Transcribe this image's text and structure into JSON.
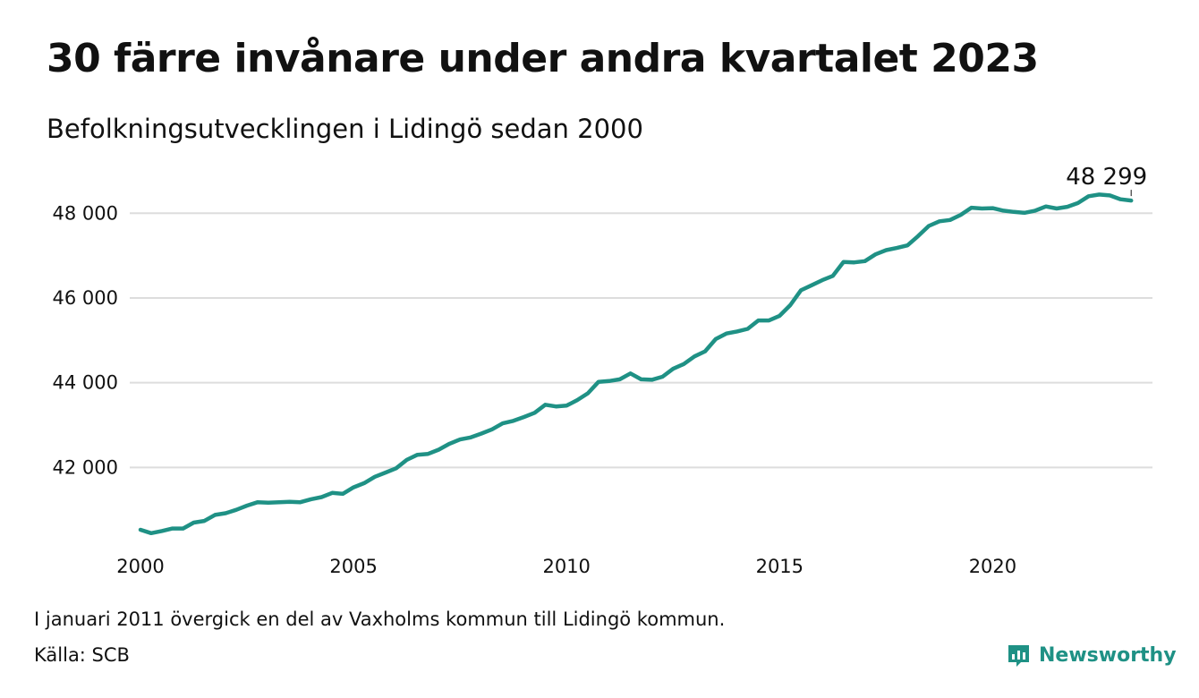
{
  "header": {
    "title": "30 färre invånare under andra kvartalet 2023",
    "subtitle": "Befolkningsutvecklingen i Lidingö sedan 2000"
  },
  "footer": {
    "note": "I januari 2011 övergick en del av Vaxholms kommun till Lidingö kommun.",
    "source": "Källa: SCB",
    "brand": "Newsworthy"
  },
  "colors": {
    "line": "#1f9185",
    "grid": "#dddddd",
    "brand": "#1f9185"
  },
  "icons": {
    "brand": "bar-chart-speech-bubble-icon"
  },
  "chart_data": {
    "type": "line",
    "title": "30 färre invånare under andra kvartalet 2023",
    "subtitle": "Befolkningsutvecklingen i Lidingö sedan 2000",
    "xlabel": "",
    "ylabel": "",
    "xlim": [
      2000,
      2023.75
    ],
    "ylim": [
      40150,
      48850
    ],
    "xticks": [
      2000,
      2005,
      2010,
      2015,
      2020
    ],
    "xtick_labels": [
      "2000",
      "2005",
      "2010",
      "2015",
      "2020"
    ],
    "yticks": [
      42000,
      44000,
      46000,
      48000
    ],
    "ytick_labels": [
      "42 000",
      "44 000",
      "46 000",
      "48 000"
    ],
    "grid": "horizontal",
    "legend": "none",
    "end_label": "48 299",
    "x": [
      2000.0,
      2000.25,
      2000.5,
      2000.75,
      2001.0,
      2001.25,
      2001.5,
      2001.75,
      2002.0,
      2002.25,
      2002.5,
      2002.75,
      2003.0,
      2003.25,
      2003.5,
      2003.75,
      2004.0,
      2004.25,
      2004.5,
      2004.75,
      2005.0,
      2005.25,
      2005.5,
      2005.75,
      2006.0,
      2006.25,
      2006.5,
      2006.75,
      2007.0,
      2007.25,
      2007.5,
      2007.75,
      2008.0,
      2008.25,
      2008.5,
      2008.75,
      2009.0,
      2009.25,
      2009.5,
      2009.75,
      2010.0,
      2010.25,
      2010.5,
      2010.75,
      2011.0,
      2011.25,
      2011.5,
      2011.75,
      2012.0,
      2012.25,
      2012.5,
      2012.75,
      2013.0,
      2013.25,
      2013.5,
      2013.75,
      2014.0,
      2014.25,
      2014.5,
      2014.75,
      2015.0,
      2015.25,
      2015.5,
      2015.75,
      2016.0,
      2016.25,
      2016.5,
      2016.75,
      2017.0,
      2017.25,
      2017.5,
      2017.75,
      2018.0,
      2018.25,
      2018.5,
      2018.75,
      2019.0,
      2019.25,
      2019.5,
      2019.75,
      2020.0,
      2020.25,
      2020.5,
      2020.75,
      2021.0,
      2021.25,
      2021.5,
      2021.75,
      2022.0,
      2022.25,
      2022.5,
      2022.75,
      2023.0,
      2023.25
    ],
    "y": [
      40530,
      40450,
      40500,
      40560,
      40560,
      40700,
      40740,
      40880,
      40920,
      41000,
      41100,
      41180,
      41170,
      41180,
      41190,
      41180,
      41250,
      41300,
      41400,
      41380,
      41530,
      41630,
      41780,
      41880,
      41980,
      42180,
      42300,
      42320,
      42420,
      42560,
      42660,
      42710,
      42800,
      42900,
      43040,
      43100,
      43190,
      43290,
      43480,
      43440,
      43460,
      43590,
      43750,
      44020,
      44040,
      44080,
      44220,
      44080,
      44070,
      44140,
      44330,
      44440,
      44620,
      44740,
      45030,
      45160,
      45210,
      45270,
      45470,
      45470,
      45580,
      45830,
      46180,
      46300,
      46420,
      46520,
      46850,
      46840,
      46870,
      47030,
      47130,
      47180,
      47240,
      47460,
      47700,
      47810,
      47840,
      47960,
      48130,
      48110,
      48120,
      48060,
      48030,
      48010,
      48060,
      48160,
      48110,
      48150,
      48240,
      48400,
      48440,
      48420,
      48329,
      48299
    ]
  }
}
